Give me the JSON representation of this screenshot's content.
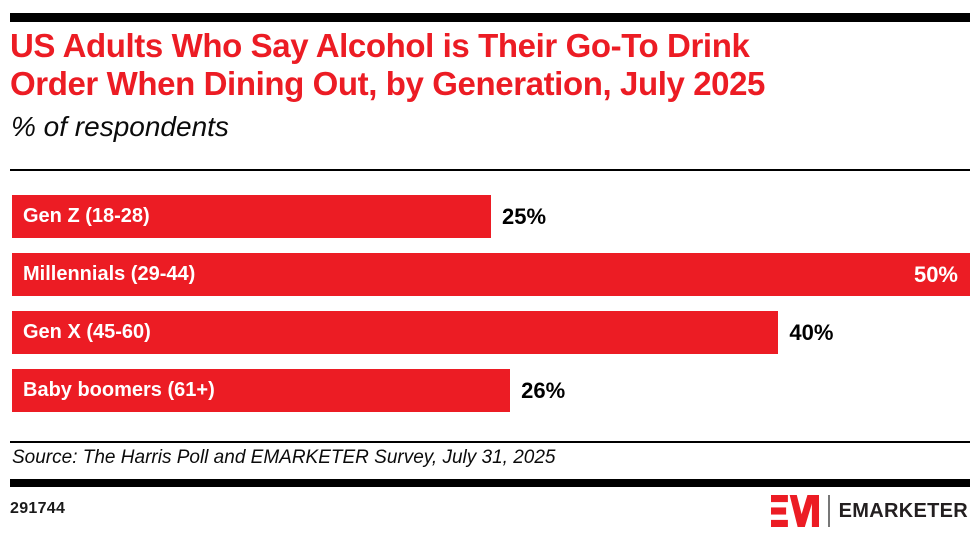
{
  "header": {
    "title_line1": "US Adults Who Say Alcohol is Their Go-To Drink",
    "title_line2": "Order When Dining Out, by Generation, July 2025",
    "subtitle": "% of respondents"
  },
  "chart_data": {
    "type": "bar",
    "orientation": "horizontal",
    "title": "US Adults Who Say Alcohol is Their Go-To Drink Order When Dining Out, by Generation, July 2025",
    "subtitle": "% of respondents",
    "categories": [
      "Gen Z (18-28)",
      "Millennials (29-44)",
      "Gen X (45-60)",
      "Baby boomers (61+)"
    ],
    "values": [
      25,
      50,
      40,
      26
    ],
    "value_labels": [
      "25%",
      "50%",
      "40%",
      "26%"
    ],
    "label_inside": [
      false,
      true,
      false,
      false
    ],
    "xlim": [
      0,
      50
    ],
    "bar_color": "#EC1C24",
    "grid": false,
    "legend": "none"
  },
  "footer": {
    "source": "Source: The Harris Poll and EMARKETER Survey, July 31, 2025",
    "chart_id": "291744",
    "brand": "EMARKETER",
    "logo_monogram": "EM",
    "accent_color": "#EC1C24"
  }
}
